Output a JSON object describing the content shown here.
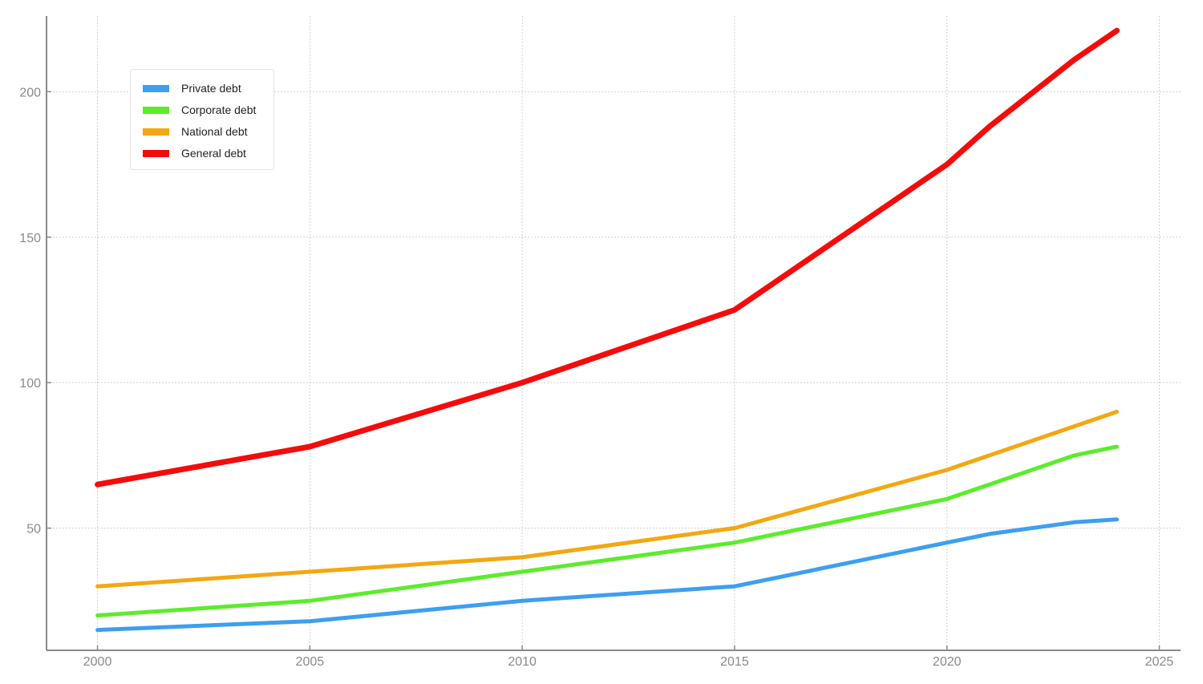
{
  "chart_data": {
    "type": "line",
    "title": "",
    "xlabel": "",
    "ylabel": "",
    "xlim": [
      1998.8,
      2025.5
    ],
    "ylim": [
      8,
      226
    ],
    "x_ticks": [
      2000,
      2005,
      2010,
      2015,
      2020,
      2025
    ],
    "y_ticks": [
      50,
      100,
      150,
      200
    ],
    "grid": true,
    "legend_position": "top-left",
    "series": [
      {
        "name": "Private debt",
        "color": "#3d9ff0",
        "x": [
          2000,
          2005,
          2010,
          2015,
          2020,
          2021,
          2023,
          2024
        ],
        "y": [
          15,
          18,
          25,
          30,
          45,
          48,
          52,
          53
        ]
      },
      {
        "name": "Corporate debt",
        "color": "#5cec2c",
        "x": [
          2000,
          2005,
          2010,
          2015,
          2020,
          2021,
          2023,
          2024
        ],
        "y": [
          20,
          25,
          35,
          45,
          60,
          65,
          75,
          78
        ]
      },
      {
        "name": "National debt",
        "color": "#f3a712",
        "x": [
          2000,
          2005,
          2010,
          2015,
          2020,
          2021,
          2023,
          2024
        ],
        "y": [
          30,
          35,
          40,
          50,
          70,
          75,
          85,
          90
        ]
      },
      {
        "name": "General debt",
        "color": "#f40c0c",
        "x": [
          2000,
          2005,
          2010,
          2015,
          2020,
          2021,
          2023,
          2024
        ],
        "y": [
          65,
          78,
          100,
          125,
          175,
          188,
          211,
          221
        ]
      }
    ]
  }
}
